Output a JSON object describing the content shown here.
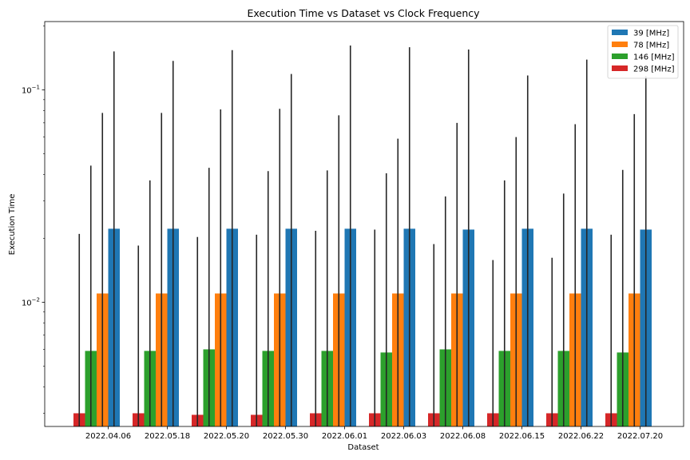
{
  "chart_data": {
    "type": "bar",
    "title": "Execution Time vs Dataset vs Clock Frequency",
    "xlabel": "Dataset",
    "ylabel": "Execution Time",
    "yscale": "log",
    "ylim": [
      0.0026,
      0.21
    ],
    "yticks": [
      {
        "value": 0.01,
        "base": "10",
        "exp": "−2"
      },
      {
        "value": 0.1,
        "base": "10",
        "exp": "−1"
      }
    ],
    "grid": false,
    "legend_position": "top-right",
    "categories": [
      "2022.04.06",
      "2022.05.18",
      "2022.05.20",
      "2022.05.30",
      "2022.06.01",
      "2022.06.03",
      "2022.06.08",
      "2022.06.15",
      "2022.06.22",
      "2022.07.20"
    ],
    "series": [
      {
        "name": "298 [MHz]",
        "color": "#d62728",
        "values": [
          0.003,
          0.003,
          0.00295,
          0.00295,
          0.003,
          0.003,
          0.003,
          0.003,
          0.003,
          0.003
        ],
        "err_high": [
          0.021,
          0.0185,
          0.0203,
          0.0208,
          0.0217,
          0.022,
          0.0188,
          0.0158,
          0.0162,
          0.0208
        ]
      },
      {
        "name": "146 [MHz]",
        "color": "#2ca02c",
        "values": [
          0.0059,
          0.0059,
          0.006,
          0.0059,
          0.0059,
          0.0058,
          0.006,
          0.0059,
          0.0059,
          0.0058
        ],
        "err_high": [
          0.044,
          0.0375,
          0.043,
          0.0415,
          0.0418,
          0.0405,
          0.0315,
          0.0375,
          0.0325,
          0.042
        ]
      },
      {
        "name": "78 [MHz]",
        "color": "#ff7f0e",
        "values": [
          0.011,
          0.011,
          0.011,
          0.011,
          0.011,
          0.011,
          0.011,
          0.011,
          0.011,
          0.011
        ],
        "err_high": [
          0.078,
          0.078,
          0.081,
          0.0815,
          0.076,
          0.059,
          0.07,
          0.06,
          0.069,
          0.077
        ]
      },
      {
        "name": "39 [MHz]",
        "color": "#1f77b4",
        "values": [
          0.0222,
          0.0222,
          0.0222,
          0.0222,
          0.0222,
          0.0222,
          0.022,
          0.0222,
          0.0222,
          0.022
        ],
        "err_high": [
          0.152,
          0.137,
          0.154,
          0.119,
          0.162,
          0.159,
          0.155,
          0.117,
          0.139,
          0.116
        ]
      }
    ],
    "legend_order": [
      3,
      2,
      1,
      0
    ]
  }
}
